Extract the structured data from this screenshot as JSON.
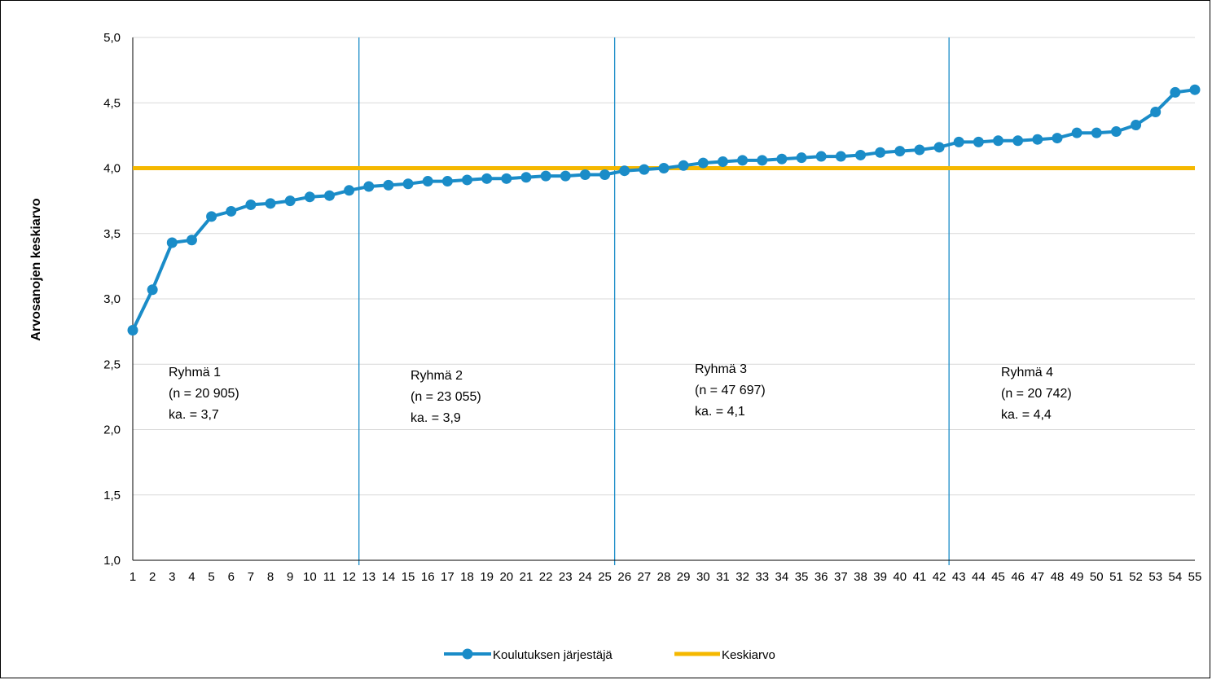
{
  "chart_data": {
    "type": "line",
    "title": "",
    "xlabel": "",
    "ylabel": "Arvosanojen keskiarvo",
    "ylim": [
      1.0,
      5.0
    ],
    "y_ticks": [
      "1,0",
      "1,5",
      "2,0",
      "2,5",
      "3,0",
      "3,5",
      "4,0",
      "4,5",
      "5,0"
    ],
    "x": [
      1,
      2,
      3,
      4,
      5,
      6,
      7,
      8,
      9,
      10,
      11,
      12,
      13,
      14,
      15,
      16,
      17,
      18,
      19,
      20,
      21,
      22,
      23,
      24,
      25,
      26,
      27,
      28,
      29,
      30,
      31,
      32,
      33,
      34,
      35,
      36,
      37,
      38,
      39,
      40,
      41,
      42,
      43,
      44,
      45,
      46,
      47,
      48,
      49,
      50,
      51,
      52,
      53,
      54,
      55
    ],
    "grid": "horizontal",
    "legend_position": "bottom",
    "series": [
      {
        "name": "Koulutuksen järjestäjä",
        "color": "#1a8cc8",
        "marker": "circle",
        "values": [
          2.76,
          3.07,
          3.43,
          3.45,
          3.63,
          3.67,
          3.72,
          3.73,
          3.75,
          3.78,
          3.79,
          3.83,
          3.86,
          3.87,
          3.88,
          3.9,
          3.9,
          3.91,
          3.92,
          3.92,
          3.93,
          3.94,
          3.94,
          3.95,
          3.95,
          3.98,
          3.99,
          4.0,
          4.02,
          4.04,
          4.05,
          4.06,
          4.06,
          4.07,
          4.08,
          4.09,
          4.09,
          4.1,
          4.12,
          4.13,
          4.14,
          4.16,
          4.2,
          4.2,
          4.21,
          4.21,
          4.22,
          4.23,
          4.27,
          4.27,
          4.28,
          4.33,
          4.43,
          4.58,
          4.6
        ]
      },
      {
        "name": "Keskiarvo",
        "color": "#f5b800",
        "value": 4.0
      }
    ],
    "group_dividers_after_x": [
      12,
      25,
      42
    ],
    "groups": [
      {
        "name": "Ryhmä 1",
        "n": "(n = 20 905)",
        "mean": "ka. = 3,7"
      },
      {
        "name": "Ryhmä 2",
        "n": "(n = 23 055)",
        "mean": "ka. = 3,9"
      },
      {
        "name": "Ryhmä 3",
        "n": "(n = 47 697)",
        "mean": "ka. = 4,1"
      },
      {
        "name": "Ryhmä 4",
        "n": "(n = 20 742)",
        "mean": "ka. = 4,4"
      }
    ]
  }
}
